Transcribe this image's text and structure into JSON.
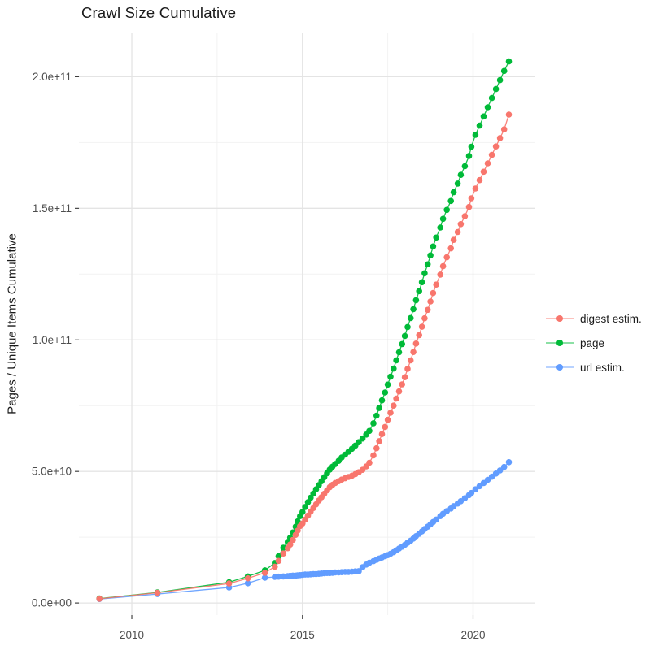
{
  "title": "Crawl Size Cumulative",
  "axes": {
    "y_label": "Pages / Unique Items Cumulative",
    "x_tick_labels": [
      "2010",
      "2015",
      "2020"
    ],
    "y_tick_labels": [
      "0.0e+00",
      "5.0e+10",
      "1.0e+11",
      "1.5e+11",
      "2.0e+11"
    ]
  },
  "legend": {
    "items": [
      {
        "label": "digest estim.",
        "color": "#F8766D"
      },
      {
        "label": "page",
        "color": "#00BA38"
      },
      {
        "label": "url estim.",
        "color": "#619CFF"
      }
    ]
  },
  "colors": {
    "digest": "#F8766D",
    "page": "#00BA38",
    "url": "#619CFF",
    "grid_major": "#E4E4E4",
    "grid_minor": "#F2F2F2",
    "tick": "#333333",
    "tick_label": "#4d4d4d"
  },
  "chart_data": {
    "type": "line",
    "title": "Crawl Size Cumulative",
    "xlabel": "",
    "ylabel": "Pages / Unique Items Cumulative",
    "x_unit": "year (decimal)",
    "y_unit": "items; stored values are billions, on-screen value = billions x 1e9",
    "x_domain": [
      2008.45,
      2021.8
    ],
    "y_domain_billions": [
      -4.6,
      216.8
    ],
    "x_tick_values": [
      2010,
      2015,
      2020
    ],
    "x_minor_tick_values": [
      2012.5,
      2017.5
    ],
    "y_tick_values_billions": [
      0,
      50,
      100,
      150,
      200
    ],
    "y_minor_tick_values_billions": [
      25,
      75,
      125,
      175
    ],
    "y_tick_labels": [
      "0.0e+00",
      "5.0e+10",
      "1.0e+11",
      "1.5e+11",
      "2.0e+11"
    ],
    "grid": true,
    "legend_position": "right",
    "series": [
      {
        "name": "url estim.",
        "id": "url",
        "color": "#619CFF",
        "points": [
          [
            2009.05,
            1.5
          ],
          [
            2010.75,
            3.4
          ],
          [
            2012.85,
            5.9
          ],
          [
            2013.4,
            7.5
          ],
          [
            2013.9,
            9.6
          ],
          [
            2014.19,
            9.9
          ],
          [
            2014.3,
            10.0
          ],
          [
            2014.44,
            10.1
          ],
          [
            2014.57,
            10.2
          ],
          [
            2014.64,
            10.3
          ],
          [
            2014.72,
            10.4
          ],
          [
            2014.8,
            10.4
          ],
          [
            2014.86,
            10.5
          ],
          [
            2014.93,
            10.6
          ],
          [
            2015.0,
            10.7
          ],
          [
            2015.08,
            10.8
          ],
          [
            2015.16,
            10.8
          ],
          [
            2015.24,
            10.9
          ],
          [
            2015.32,
            11.0
          ],
          [
            2015.4,
            11.0
          ],
          [
            2015.48,
            11.1
          ],
          [
            2015.56,
            11.2
          ],
          [
            2015.64,
            11.3
          ],
          [
            2015.72,
            11.4
          ],
          [
            2015.8,
            11.4
          ],
          [
            2015.88,
            11.5
          ],
          [
            2015.96,
            11.6
          ],
          [
            2016.06,
            11.6
          ],
          [
            2016.15,
            11.7
          ],
          [
            2016.25,
            11.8
          ],
          [
            2016.35,
            11.8
          ],
          [
            2016.45,
            11.9
          ],
          [
            2016.55,
            12.0
          ],
          [
            2016.65,
            12.1
          ],
          [
            2016.76,
            13.6
          ],
          [
            2016.87,
            14.6
          ],
          [
            2016.96,
            15.3
          ],
          [
            2017.08,
            15.9
          ],
          [
            2017.17,
            16.4
          ],
          [
            2017.25,
            16.9
          ],
          [
            2017.33,
            17.3
          ],
          [
            2017.42,
            17.8
          ],
          [
            2017.5,
            18.2
          ],
          [
            2017.58,
            18.7
          ],
          [
            2017.67,
            19.3
          ],
          [
            2017.75,
            20.0
          ],
          [
            2017.83,
            20.7
          ],
          [
            2017.92,
            21.4
          ],
          [
            2018.0,
            22.1
          ],
          [
            2018.08,
            22.9
          ],
          [
            2018.17,
            23.7
          ],
          [
            2018.25,
            24.5
          ],
          [
            2018.33,
            25.4
          ],
          [
            2018.42,
            26.3
          ],
          [
            2018.5,
            27.2
          ],
          [
            2018.58,
            28.1
          ],
          [
            2018.67,
            29.0
          ],
          [
            2018.75,
            29.9
          ],
          [
            2018.83,
            30.8
          ],
          [
            2018.92,
            31.7
          ],
          [
            2019.04,
            33.0
          ],
          [
            2019.12,
            33.9
          ],
          [
            2019.23,
            34.9
          ],
          [
            2019.35,
            35.9
          ],
          [
            2019.43,
            36.8
          ],
          [
            2019.55,
            37.8
          ],
          [
            2019.64,
            38.7
          ],
          [
            2019.76,
            39.8
          ],
          [
            2019.88,
            41.0
          ],
          [
            2019.95,
            41.8
          ],
          [
            2020.07,
            43.2
          ],
          [
            2020.19,
            44.4
          ],
          [
            2020.31,
            45.6
          ],
          [
            2020.43,
            46.8
          ],
          [
            2020.55,
            48.0
          ],
          [
            2020.67,
            49.2
          ],
          [
            2020.79,
            50.4
          ],
          [
            2020.91,
            51.7
          ],
          [
            2021.05,
            53.5
          ]
        ]
      },
      {
        "name": "page",
        "id": "page",
        "color": "#00BA38",
        "points": [
          [
            2009.05,
            1.7
          ],
          [
            2010.75,
            4.0
          ],
          [
            2012.85,
            7.9
          ],
          [
            2013.4,
            10.1
          ],
          [
            2013.9,
            12.4
          ],
          [
            2014.19,
            15.2
          ],
          [
            2014.3,
            17.8
          ],
          [
            2014.44,
            21.0
          ],
          [
            2014.57,
            23.2
          ],
          [
            2014.64,
            24.8
          ],
          [
            2014.72,
            26.8
          ],
          [
            2014.8,
            29.0
          ],
          [
            2014.86,
            31.0
          ],
          [
            2014.93,
            33.0
          ],
          [
            2015.0,
            34.6
          ],
          [
            2015.08,
            36.5
          ],
          [
            2015.16,
            38.3
          ],
          [
            2015.24,
            40.0
          ],
          [
            2015.32,
            41.6
          ],
          [
            2015.4,
            43.2
          ],
          [
            2015.48,
            44.8
          ],
          [
            2015.56,
            46.3
          ],
          [
            2015.64,
            47.8
          ],
          [
            2015.72,
            49.3
          ],
          [
            2015.8,
            50.7
          ],
          [
            2015.88,
            51.8
          ],
          [
            2015.96,
            52.8
          ],
          [
            2016.06,
            54.0
          ],
          [
            2016.15,
            55.3
          ],
          [
            2016.25,
            56.4
          ],
          [
            2016.35,
            57.5
          ],
          [
            2016.45,
            58.6
          ],
          [
            2016.55,
            59.8
          ],
          [
            2016.65,
            61.1
          ],
          [
            2016.76,
            62.5
          ],
          [
            2016.87,
            64.0
          ],
          [
            2016.96,
            65.4
          ],
          [
            2017.08,
            68.3
          ],
          [
            2017.17,
            71.2
          ],
          [
            2017.25,
            74.1
          ],
          [
            2017.33,
            77.0
          ],
          [
            2017.42,
            80.0
          ],
          [
            2017.5,
            83.0
          ],
          [
            2017.58,
            86.0
          ],
          [
            2017.67,
            89.1
          ],
          [
            2017.75,
            92.2
          ],
          [
            2017.83,
            95.3
          ],
          [
            2017.92,
            98.4
          ],
          [
            2018.0,
            101.5
          ],
          [
            2018.08,
            104.9
          ],
          [
            2018.17,
            108.3
          ],
          [
            2018.25,
            111.7
          ],
          [
            2018.33,
            115.1
          ],
          [
            2018.42,
            118.5
          ],
          [
            2018.5,
            121.9
          ],
          [
            2018.58,
            125.3
          ],
          [
            2018.67,
            128.7
          ],
          [
            2018.75,
            132.1
          ],
          [
            2018.83,
            135.5
          ],
          [
            2018.92,
            138.9
          ],
          [
            2019.04,
            142.7
          ],
          [
            2019.12,
            146.0
          ],
          [
            2019.23,
            149.4
          ],
          [
            2019.35,
            152.8
          ],
          [
            2019.43,
            156.1
          ],
          [
            2019.55,
            159.4
          ],
          [
            2019.64,
            162.7
          ],
          [
            2019.76,
            166.0
          ],
          [
            2019.88,
            169.9
          ],
          [
            2019.95,
            173.4
          ],
          [
            2020.07,
            177.9
          ],
          [
            2020.19,
            181.4
          ],
          [
            2020.31,
            184.9
          ],
          [
            2020.43,
            188.4
          ],
          [
            2020.55,
            191.9
          ],
          [
            2020.67,
            195.3
          ],
          [
            2020.79,
            198.7
          ],
          [
            2020.91,
            202.2
          ],
          [
            2021.05,
            205.8
          ]
        ]
      },
      {
        "name": "digest estim.",
        "id": "digest",
        "color": "#F8766D",
        "points": [
          [
            2009.05,
            1.6
          ],
          [
            2010.75,
            3.9
          ],
          [
            2012.85,
            7.4
          ],
          [
            2013.4,
            9.4
          ],
          [
            2013.9,
            11.5
          ],
          [
            2014.19,
            13.8
          ],
          [
            2014.3,
            16.0
          ],
          [
            2014.44,
            18.8
          ],
          [
            2014.57,
            20.8
          ],
          [
            2014.64,
            22.2
          ],
          [
            2014.72,
            24.0
          ],
          [
            2014.8,
            25.9
          ],
          [
            2014.86,
            27.5
          ],
          [
            2014.93,
            29.2
          ],
          [
            2015.0,
            30.2
          ],
          [
            2015.08,
            31.7
          ],
          [
            2015.16,
            33.2
          ],
          [
            2015.24,
            34.7
          ],
          [
            2015.32,
            36.1
          ],
          [
            2015.4,
            37.5
          ],
          [
            2015.48,
            38.9
          ],
          [
            2015.56,
            40.2
          ],
          [
            2015.64,
            41.5
          ],
          [
            2015.72,
            42.8
          ],
          [
            2015.8,
            44.0
          ],
          [
            2015.88,
            44.9
          ],
          [
            2015.96,
            45.6
          ],
          [
            2016.06,
            46.3
          ],
          [
            2016.15,
            46.9
          ],
          [
            2016.25,
            47.4
          ],
          [
            2016.35,
            47.9
          ],
          [
            2016.45,
            48.4
          ],
          [
            2016.55,
            49.0
          ],
          [
            2016.65,
            49.7
          ],
          [
            2016.76,
            50.6
          ],
          [
            2016.87,
            51.9
          ],
          [
            2016.96,
            53.3
          ],
          [
            2017.08,
            56.1
          ],
          [
            2017.17,
            58.8
          ],
          [
            2017.25,
            61.5
          ],
          [
            2017.33,
            64.2
          ],
          [
            2017.42,
            66.9
          ],
          [
            2017.5,
            69.6
          ],
          [
            2017.58,
            72.3
          ],
          [
            2017.67,
            75.0
          ],
          [
            2017.75,
            77.7
          ],
          [
            2017.83,
            80.4
          ],
          [
            2017.92,
            83.1
          ],
          [
            2018.0,
            85.8
          ],
          [
            2018.08,
            89.0
          ],
          [
            2018.17,
            92.2
          ],
          [
            2018.25,
            95.4
          ],
          [
            2018.33,
            98.6
          ],
          [
            2018.42,
            101.8
          ],
          [
            2018.5,
            105.0
          ],
          [
            2018.58,
            108.2
          ],
          [
            2018.67,
            111.4
          ],
          [
            2018.75,
            114.6
          ],
          [
            2018.83,
            117.8
          ],
          [
            2018.92,
            121.0
          ],
          [
            2019.04,
            124.8
          ],
          [
            2019.12,
            128.0
          ],
          [
            2019.23,
            131.4
          ],
          [
            2019.35,
            134.8
          ],
          [
            2019.43,
            138.0
          ],
          [
            2019.55,
            141.0
          ],
          [
            2019.64,
            144.0
          ],
          [
            2019.76,
            147.0
          ],
          [
            2019.88,
            150.5
          ],
          [
            2019.95,
            153.8
          ],
          [
            2020.07,
            157.5
          ],
          [
            2020.19,
            160.7
          ],
          [
            2020.31,
            163.9
          ],
          [
            2020.43,
            167.1
          ],
          [
            2020.55,
            170.3
          ],
          [
            2020.67,
            173.5
          ],
          [
            2020.79,
            176.7
          ],
          [
            2020.91,
            180.0
          ],
          [
            2021.05,
            185.6
          ]
        ]
      }
    ]
  }
}
